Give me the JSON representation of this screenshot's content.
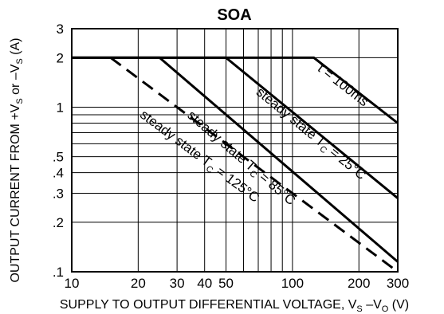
{
  "chart_data": {
    "type": "line",
    "title": "SOA",
    "xlabel": {
      "parts": [
        {
          "t": "SUPPLY TO OUTPUT DIFFERENTIAL VOLTAGE, V"
        },
        {
          "t": "S",
          "sub": true
        },
        {
          "t": " –V"
        },
        {
          "t": "O",
          "sub": true
        },
        {
          "t": " (V)"
        }
      ]
    },
    "ylabel": {
      "parts": [
        {
          "t": "OUTPUT CURRENT FROM +V"
        },
        {
          "t": "S",
          "sub": true
        },
        {
          "t": " or –V"
        },
        {
          "t": "S",
          "sub": true
        },
        {
          "t": " (A)"
        }
      ]
    },
    "x_scale": "log",
    "y_scale": "log",
    "xlim": [
      10,
      300
    ],
    "ylim": [
      0.1,
      3
    ],
    "x_ticks": [
      {
        "value": 10,
        "label": "10"
      },
      {
        "value": 20,
        "label": "20"
      },
      {
        "value": 30,
        "label": "30"
      },
      {
        "value": 40,
        "label": "40"
      },
      {
        "value": 50,
        "label": "50"
      },
      {
        "value": 100,
        "label": "100"
      },
      {
        "value": 200,
        "label": "200"
      },
      {
        "value": 300,
        "label": "300"
      }
    ],
    "y_ticks": [
      {
        "value": 0.1,
        "label": ".1"
      },
      {
        "value": 0.2,
        "label": ".2"
      },
      {
        "value": 0.3,
        "label": ".3"
      },
      {
        "value": 0.4,
        "label": ".4"
      },
      {
        "value": 0.5,
        "label": ".5"
      },
      {
        "value": 1,
        "label": "1"
      },
      {
        "value": 2,
        "label": "2"
      },
      {
        "value": 3,
        "label": "3"
      }
    ],
    "x_grid": [
      20,
      30,
      40,
      50,
      60,
      70,
      80,
      90,
      100,
      200
    ],
    "y_grid": [
      0.2,
      0.3,
      0.4,
      0.5,
      0.6,
      0.7,
      0.8,
      0.9,
      1,
      2
    ],
    "grid": true,
    "series": [
      {
        "label_parts": [
          {
            "t": "t = 100ms"
          }
        ],
        "style": "solid",
        "points": [
          [
            10,
            2
          ],
          [
            125,
            2
          ],
          [
            300,
            0.8
          ]
        ],
        "label_at": [
          165,
          1.3
        ]
      },
      {
        "label_parts": [
          {
            "t": "steady state T"
          },
          {
            "t": "C",
            "sub": true
          },
          {
            "t": " = 25°C"
          }
        ],
        "style": "solid",
        "points": [
          [
            10,
            2
          ],
          [
            50,
            2
          ],
          [
            300,
            0.28
          ]
        ],
        "label_at": [
          118,
          0.66
        ]
      },
      {
        "label_parts": [
          {
            "t": "steady state T"
          },
          {
            "t": "C",
            "sub": true
          },
          {
            "t": " = 85°C"
          }
        ],
        "style": "solid",
        "points": [
          [
            10,
            2
          ],
          [
            25,
            2
          ],
          [
            300,
            0.115
          ]
        ],
        "label_at": [
          57,
          0.47
        ]
      },
      {
        "label_parts": [
          {
            "t": "steady state T"
          },
          {
            "t": "C",
            "sub": true
          },
          {
            "t": " = 125°C"
          }
        ],
        "style": "dashed",
        "points": [
          [
            15,
            2
          ],
          [
            300,
            0.1
          ]
        ],
        "label_at": [
          37,
          0.48
        ]
      }
    ]
  }
}
